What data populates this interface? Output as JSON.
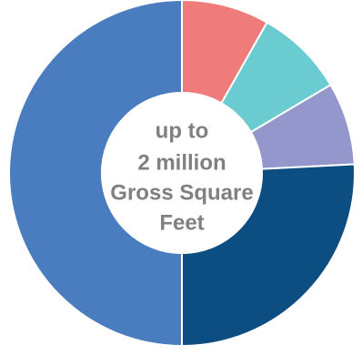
{
  "chart_data": {
    "type": "pie",
    "donut": true,
    "title": "",
    "center_label_lines": [
      "up to",
      "2 million",
      "Gross Square",
      "Feet"
    ],
    "start_angle_deg": 0,
    "direction": "clockwise",
    "slices": [
      {
        "value": 8.2,
        "color": "#f07b7b"
      },
      {
        "value": 8.3,
        "color": "#6accd0"
      },
      {
        "value": 7.7,
        "color": "#9397cb"
      },
      {
        "value": 25.8,
        "color": "#0d4e82"
      },
      {
        "value": 50.0,
        "color": "#4a7cc0"
      }
    ],
    "legend": "none"
  }
}
